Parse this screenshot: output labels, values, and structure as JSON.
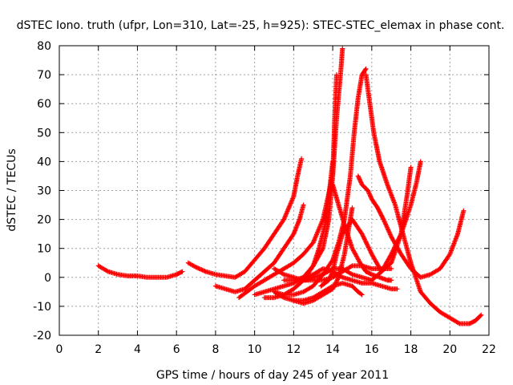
{
  "chart_data": {
    "type": "scatter",
    "title": "dSTEC Iono. truth (ufpr, Lon=310, Lat=-25, h=925): STEC-STEC_elemax in phase cont.",
    "xlabel": "GPS time / hours of day 245 of year 2011",
    "ylabel": "dSTEC  / TECUs",
    "xlim": [
      0,
      22
    ],
    "ylim": [
      -20,
      80
    ],
    "x_ticks": [
      0,
      2,
      4,
      6,
      8,
      10,
      12,
      14,
      16,
      18,
      20,
      22
    ],
    "y_ticks": [
      -20,
      -10,
      0,
      10,
      20,
      30,
      40,
      50,
      60,
      70,
      80
    ],
    "grid": true,
    "marker": "+",
    "color": "#ff0000",
    "series": [
      {
        "x": [
          2.0,
          2.5,
          3.0,
          3.5,
          4.0,
          4.5,
          5.0,
          5.5,
          6.0,
          6.3
        ],
        "y": [
          4,
          2,
          1,
          0.5,
          0.5,
          0,
          0,
          0,
          1,
          2
        ]
      },
      {
        "x": [
          6.6,
          7.0,
          7.5,
          8.0,
          8.5,
          9.0,
          9.5,
          10.0,
          10.5,
          11.0,
          11.5,
          12.0,
          12.2,
          12.4
        ],
        "y": [
          5,
          3.5,
          2,
          1,
          0.5,
          0,
          2,
          6,
          10,
          15,
          20,
          28,
          35,
          41
        ]
      },
      {
        "x": [
          8.0,
          8.5,
          9.0,
          9.5,
          10.0,
          10.5,
          11.0,
          11.5,
          12.0,
          12.3,
          12.5
        ],
        "y": [
          -3,
          -4,
          -5,
          -4,
          -1,
          2,
          5,
          10,
          15,
          20,
          25
        ]
      },
      {
        "x": [
          9.2,
          9.6,
          10.0,
          10.5,
          11.0,
          11.5,
          12.0,
          12.5,
          13.0,
          13.5,
          14.0,
          14.2,
          14.4,
          14.5
        ],
        "y": [
          -7,
          -5,
          -3,
          -1,
          1,
          3,
          5,
          8,
          12,
          20,
          35,
          55,
          70,
          79
        ]
      },
      {
        "x": [
          10.0,
          10.5,
          11.0,
          11.5,
          12.0,
          12.5,
          13.0,
          13.5,
          13.8,
          14.0,
          14.1,
          14.2
        ],
        "y": [
          -6,
          -5,
          -4,
          -3,
          -2,
          0,
          4,
          10,
          20,
          35,
          55,
          70
        ]
      },
      {
        "x": [
          10.5,
          11.0,
          11.5,
          12.0,
          12.5,
          13.0,
          13.3,
          13.6,
          13.8,
          14.0
        ],
        "y": [
          -7,
          -7,
          -6,
          -4,
          -1,
          4,
          10,
          18,
          28,
          40
        ]
      },
      {
        "x": [
          11.0,
          11.5,
          12.0,
          12.5,
          13.0,
          13.5,
          14.0,
          14.3,
          14.6,
          14.9,
          15.1,
          15.3,
          15.5,
          15.7
        ],
        "y": [
          -5,
          -6,
          -6,
          -5,
          -3,
          1,
          6,
          12,
          20,
          35,
          50,
          62,
          70,
          72
        ]
      },
      {
        "x": [
          11.0,
          11.5,
          12.0,
          12.5,
          13.0,
          13.5,
          14.0,
          14.5,
          15.0,
          15.3,
          15.5
        ],
        "y": [
          -5,
          -7,
          -8,
          -8,
          -7,
          -5,
          -3,
          -2,
          -3,
          -5,
          -6
        ]
      },
      {
        "x": [
          12.0,
          12.5,
          13.0,
          13.5,
          14.0,
          14.3,
          14.6,
          15.0
        ],
        "y": [
          -8,
          -9,
          -8,
          -6,
          -4,
          0,
          8,
          24
        ]
      },
      {
        "x": [
          11.0,
          11.5,
          12.0,
          12.5,
          13.0,
          13.5,
          14.0,
          14.5,
          15.0,
          15.5,
          16.0,
          16.5,
          17.0
        ],
        "y": [
          3,
          1,
          0,
          -1,
          -1,
          -1,
          0,
          2,
          4,
          4,
          3,
          3,
          3
        ]
      },
      {
        "x": [
          11.5,
          12.0,
          12.5,
          13.0,
          13.5,
          14.0,
          14.5,
          15.0,
          15.5,
          16.0,
          16.5,
          17.0,
          17.3
        ],
        "y": [
          -1,
          -1,
          0,
          1,
          3,
          2,
          0,
          -1,
          -2,
          -2,
          -3,
          -4,
          -4
        ]
      },
      {
        "x": [
          12.6,
          13.0,
          13.5,
          14.0,
          14.5,
          15.0,
          15.5,
          16.0,
          16.5,
          17.0,
          17.5,
          18.0,
          18.3,
          18.5
        ],
        "y": [
          -1,
          0,
          1,
          3,
          3,
          1,
          0,
          -1,
          2,
          8,
          15,
          25,
          33,
          40
        ]
      },
      {
        "x": [
          13.4,
          13.6,
          13.8,
          14.0,
          14.2,
          14.5,
          15.0,
          15.5,
          16.0,
          16.5,
          17.0,
          17.5,
          17.8,
          18.0
        ],
        "y": [
          -3,
          -2,
          -1,
          2,
          8,
          15,
          20,
          15,
          8,
          2,
          5,
          15,
          28,
          38
        ]
      },
      {
        "x": [
          14.0,
          14.3,
          14.7,
          15.0,
          15.4,
          15.7,
          16.0,
          16.4,
          16.8,
          17.0
        ],
        "y": [
          32,
          25,
          16,
          10,
          5,
          2,
          1,
          0,
          -1,
          -1
        ]
      },
      {
        "x": [
          15.3,
          15.5,
          15.8,
          16.0,
          16.3,
          16.6,
          17.0,
          17.5,
          18.0,
          18.5,
          19.0,
          19.5,
          20.0,
          20.4,
          20.7
        ],
        "y": [
          35,
          32,
          30,
          27,
          24,
          20,
          14,
          8,
          3,
          0,
          1,
          3,
          8,
          15,
          23
        ]
      },
      {
        "x": [
          15.7,
          15.9,
          16.1,
          16.4,
          16.8,
          17.2,
          17.6,
          18.0,
          18.5,
          19.0,
          19.5,
          20.0,
          20.5,
          21.0,
          21.3,
          21.6
        ],
        "y": [
          70,
          60,
          50,
          40,
          32,
          25,
          15,
          5,
          -5,
          -9,
          -12,
          -14,
          -16,
          -16,
          -15,
          -13
        ]
      }
    ]
  }
}
